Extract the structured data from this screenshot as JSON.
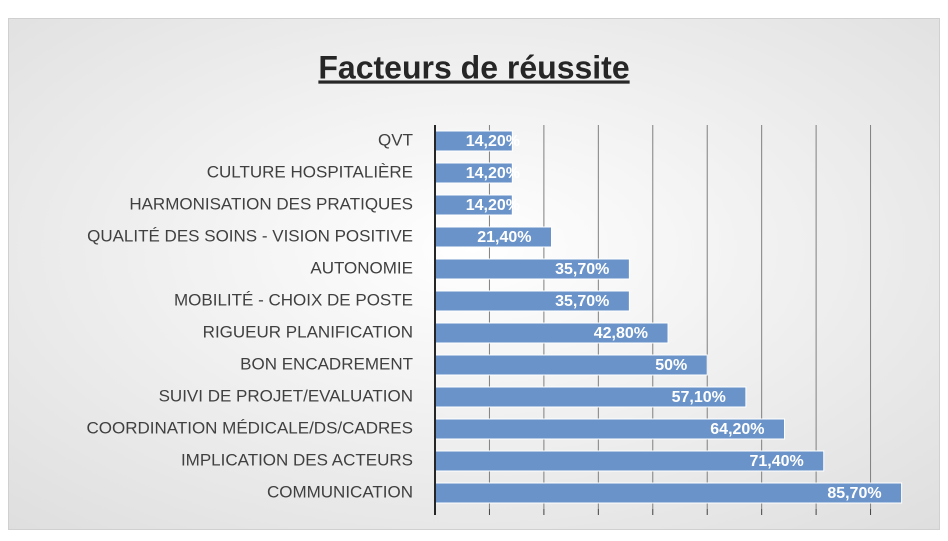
{
  "chart_data": {
    "type": "hbar",
    "title": "Facteurs de réussite",
    "categories": [
      "QVT",
      "CULTURE HOSPITALIÈRE",
      "HARMONISATION DES PRATIQUES",
      "QUALITÉ DES SOINS - VISION POSITIVE",
      "AUTONOMIE",
      "MOBILITÉ - CHOIX DE POSTE",
      "RIGUEUR PLANIFICATION",
      "BON ENCADREMENT",
      "SUIVI DE PROJET/EVALUATION",
      "COORDINATION MÉDICALE/DS/CADRES",
      "IMPLICATION DES ACTEURS",
      "COMMUNICATION"
    ],
    "values": [
      14.2,
      14.2,
      14.2,
      21.4,
      35.7,
      35.7,
      42.8,
      50,
      57.1,
      64.2,
      71.4,
      85.7
    ],
    "value_labels": [
      "14,20%",
      "14,20%",
      "14,20%",
      "21,40%",
      "35,70%",
      "35,70%",
      "42,80%",
      "50%",
      "57,10%",
      "64,20%",
      "71,40%",
      "85,70%"
    ],
    "color": "#6a93c9",
    "xlim": [
      0,
      90
    ],
    "xticks": [
      0,
      10,
      20,
      30,
      40,
      50,
      60,
      70,
      80
    ],
    "grid": true
  }
}
